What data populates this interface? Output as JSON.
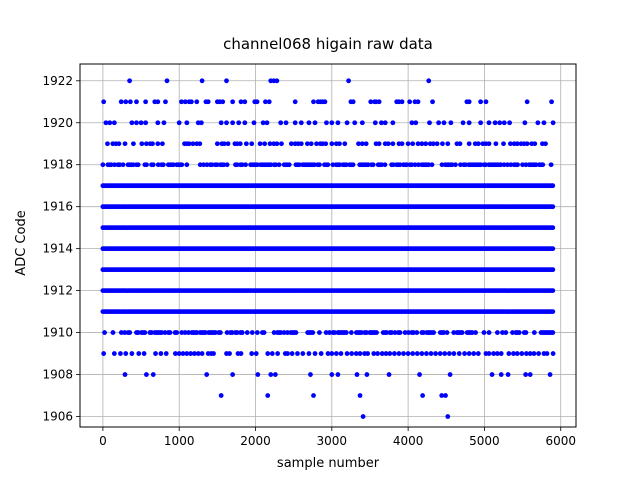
{
  "chart_data": {
    "type": "scatter",
    "title": "channel068 higain raw data",
    "xlabel": "sample number",
    "ylabel": "ADC Code",
    "xlim": [
      -300,
      6200
    ],
    "ylim": [
      1905.5,
      1922.8
    ],
    "xticks": [
      0,
      1000,
      2000,
      3000,
      4000,
      5000,
      6000
    ],
    "yticks": [
      1906,
      1908,
      1910,
      1912,
      1914,
      1916,
      1918,
      1920,
      1922
    ],
    "grid": true,
    "marker_color": "#0000ff",
    "series": [
      {
        "x_range": [
          0,
          5900
        ],
        "dense_levels": [
          1911,
          1912,
          1913,
          1914,
          1915,
          1916,
          1917
        ],
        "semi_dense_levels": {
          "1910": 0.55,
          "1918": 0.6
        },
        "rows": [
          {
            "y": 1922,
            "x": [
              350,
              840,
              1300,
              1620,
              2200,
              2240,
              2280,
              3220,
              4270
            ]
          },
          {
            "y": 1921,
            "x": [
              10,
              240,
              300,
              360,
              440,
              560,
              680,
              720,
              820,
              1030,
              1080,
              1130,
              1160,
              1230,
              1350,
              1380,
              1500,
              1530,
              1570,
              1700,
              1810,
              1860,
              1990,
              2020,
              2130,
              2180,
              2520,
              2760,
              2820,
              2850,
              2880,
              2910,
              3250,
              3280,
              3510,
              3560,
              3580,
              3620,
              3850,
              3880,
              3920,
              4020,
              4090,
              4130,
              4320,
              4770,
              4800,
              4950,
              5020,
              5560,
              5880
            ]
          },
          {
            "y": 1920,
            "x": [
              40,
              90,
              150,
              380,
              440,
              500,
              560,
              720,
              800,
              1000,
              1100,
              1250,
              1290,
              1550,
              1620,
              1700,
              1780,
              1860,
              1980,
              2100,
              2150,
              2330,
              2400,
              2520,
              2600,
              2700,
              2780,
              2930,
              3000,
              3080,
              3200,
              3300,
              3400,
              3570,
              3650,
              3700,
              3800,
              4050,
              4100,
              4280,
              4400,
              4470,
              4560,
              4720,
              4800,
              4950,
              5060,
              5140,
              5200,
              5260,
              5330,
              5530,
              5700,
              5780,
              5900
            ]
          },
          {
            "y": 1919,
            "x": [
              60,
              130,
              170,
              210,
              290,
              400,
              510,
              570,
              620,
              650,
              720,
              780,
              1070,
              1100,
              1130,
              1180,
              1230,
              1270,
              1500,
              1560,
              1590,
              1640,
              1730,
              1760,
              1800,
              1880,
              1950,
              2060,
              2120,
              2190,
              2240,
              2280,
              2340,
              2470,
              2520,
              2560,
              2600,
              2680,
              2730,
              2800,
              2850,
              2880,
              2920,
              3000,
              3060,
              3100,
              3170,
              3350,
              3400,
              3450,
              3580,
              3620,
              3700,
              3740,
              3800,
              3880,
              3920,
              4000,
              4060,
              4130,
              4180,
              4230,
              4290,
              4330,
              4380,
              4450,
              4520,
              4640,
              4680,
              4800,
              4880,
              4920,
              4980,
              5020,
              5060,
              5150,
              5250,
              5340,
              5390,
              5430,
              5480,
              5520,
              5560,
              5620,
              5660,
              5760,
              5800
            ]
          },
          {
            "y": 1909,
            "x": [
              10,
              150,
              230,
              300,
              380,
              470,
              540,
              690,
              760,
              830,
              950,
              1000,
              1050,
              1100,
              1150,
              1200,
              1250,
              1300,
              1380,
              1420,
              1450,
              1620,
              1660,
              1770,
              1810,
              1950,
              2010,
              2160,
              2220,
              2290,
              2390,
              2420,
              2480,
              2550,
              2620,
              2700,
              2780,
              2860,
              2950,
              3000,
              3060,
              3120,
              3200,
              3260,
              3320,
              3370,
              3430,
              3470,
              3550,
              3600,
              3660,
              3710,
              3760,
              3820,
              3880,
              3940,
              4000,
              4060,
              4120,
              4180,
              4240,
              4300,
              4360,
              4420,
              4480,
              4540,
              4600,
              4670,
              4740,
              4800,
              4860,
              4920,
              5020,
              5060,
              5120,
              5170,
              5220,
              5320,
              5380,
              5430,
              5490,
              5550,
              5600,
              5650,
              5710,
              5780,
              5820,
              5900
            ]
          },
          {
            "y": 1908,
            "x": [
              290,
              570,
              660,
              1360,
              1700,
              2030,
              2200,
              2260,
              2720,
              3000,
              3080,
              3330,
              3460,
              3750,
              4150,
              4550,
              5100,
              5220,
              5310,
              5540,
              5600,
              5860
            ]
          },
          {
            "y": 1907,
            "x": [
              1550,
              2160,
              2760,
              3370,
              4190,
              4440,
              4490
            ]
          },
          {
            "y": 1906,
            "x": [
              3410,
              4520
            ]
          }
        ]
      }
    ]
  }
}
